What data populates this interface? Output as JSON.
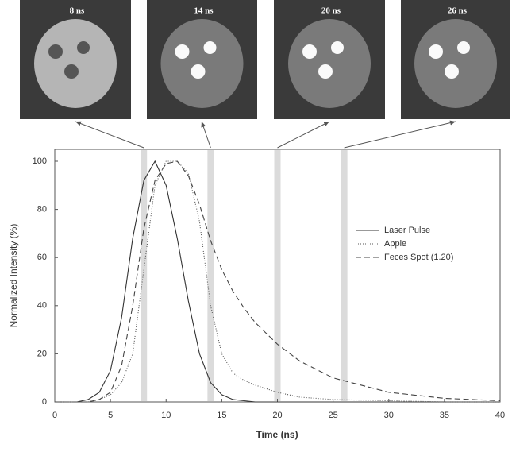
{
  "chart_data": {
    "type": "line",
    "x_label": "Time (ns)",
    "y_label": "Normalized Intensity (%)",
    "x": [
      0,
      2,
      3,
      4,
      5,
      6,
      7,
      8,
      9,
      10,
      11,
      12,
      13,
      14,
      15,
      16,
      17,
      18,
      20,
      22,
      25,
      30,
      35,
      40
    ],
    "series": [
      {
        "name": "Laser Pulse",
        "color": "#333333",
        "dash": "solid",
        "values": [
          0,
          0,
          1,
          4,
          13,
          35,
          68,
          92,
          100,
          90,
          68,
          42,
          20,
          8,
          3,
          1,
          0.5,
          0,
          0,
          0,
          0,
          0,
          0,
          0
        ]
      },
      {
        "name": "Apple",
        "color": "#555555",
        "dash": "dotted",
        "values": [
          0,
          0,
          0,
          1,
          3,
          8,
          20,
          55,
          90,
          100,
          100,
          95,
          75,
          40,
          20,
          12,
          9,
          7,
          4,
          2,
          1,
          0.5,
          0,
          0
        ]
      },
      {
        "name": "Feces Spot (1.20)",
        "color": "#444444",
        "dash": "dashed",
        "values": [
          0,
          0,
          0,
          1,
          4,
          15,
          40,
          72,
          92,
          99,
          100,
          94,
          82,
          67,
          55,
          46,
          39,
          33,
          24,
          17,
          10,
          4,
          1.5,
          0.5
        ]
      }
    ],
    "xlim": [
      0,
      40
    ],
    "ylim": [
      0,
      100
    ],
    "xticks": [
      0,
      5,
      10,
      15,
      20,
      25,
      30,
      35,
      40
    ],
    "yticks": [
      0,
      20,
      40,
      60,
      80,
      100
    ],
    "grid": false,
    "legend": "right",
    "insets": [
      {
        "label": "8 ns",
        "time": 8
      },
      {
        "label": "14 ns",
        "time": 14
      },
      {
        "label": "20 ns",
        "time": 20
      },
      {
        "label": "26 ns",
        "time": 26
      }
    ]
  }
}
